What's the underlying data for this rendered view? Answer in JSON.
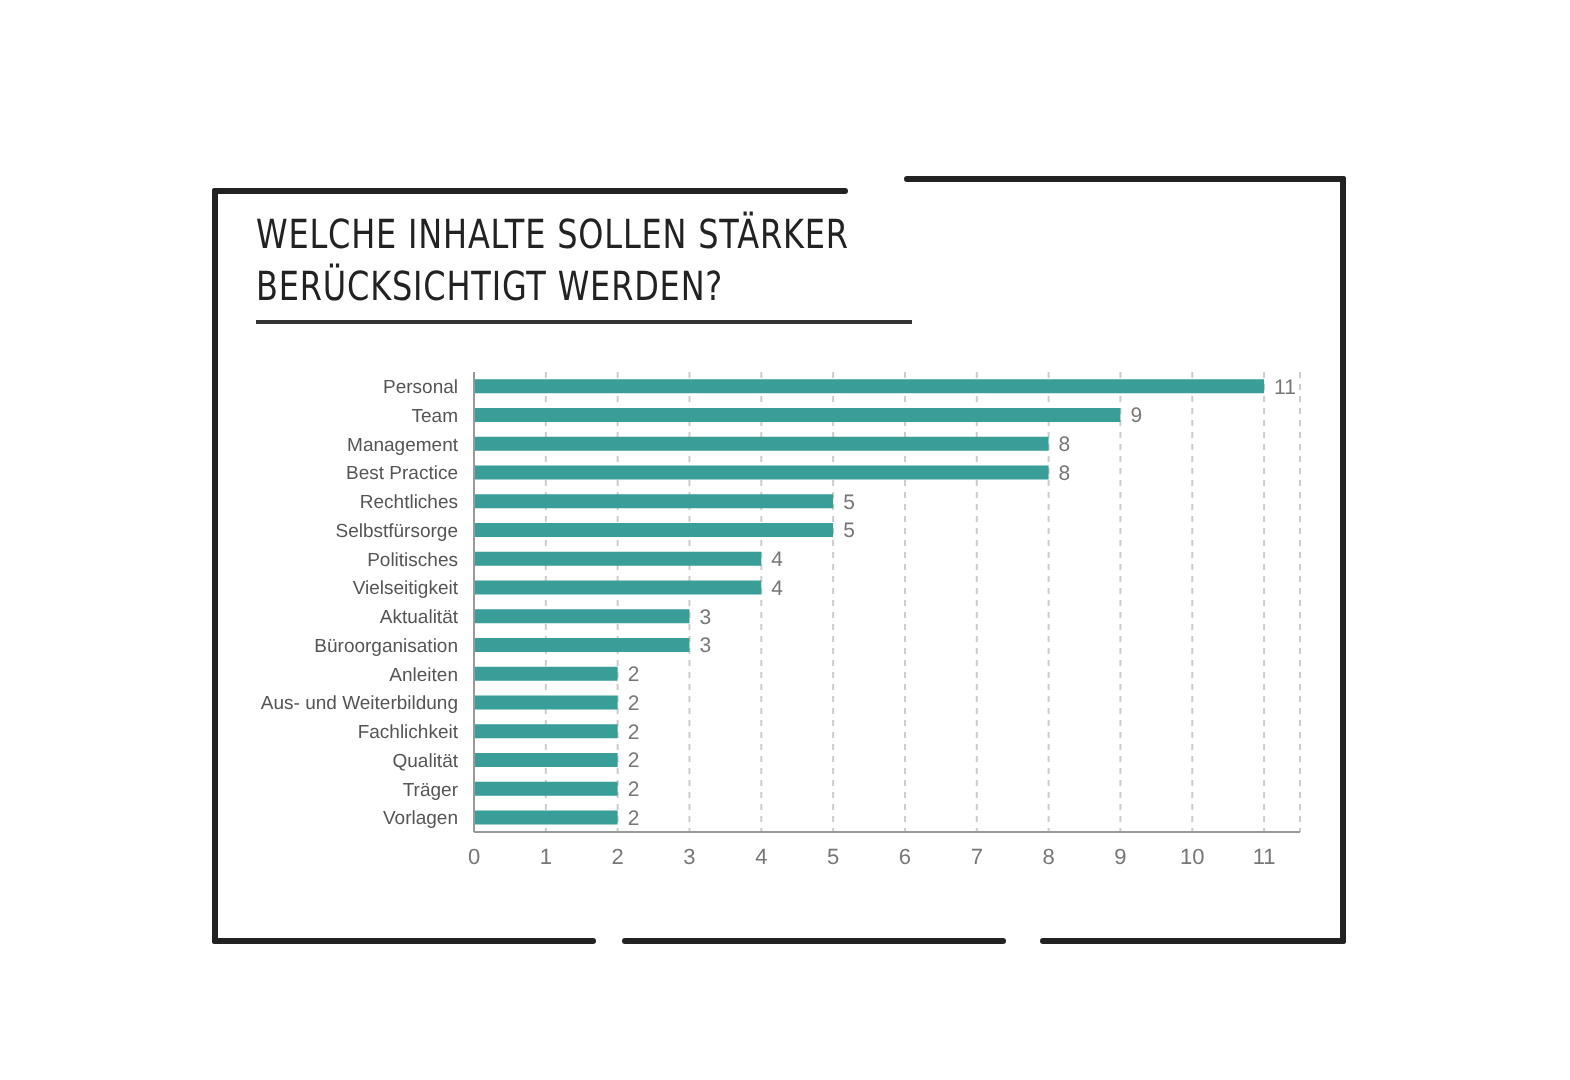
{
  "chart_data": {
    "type": "bar",
    "orientation": "horizontal",
    "title": "WELCHE INHALTE SOLLEN STÄRKER BERÜCKSICHTIGT WERDEN?",
    "categories": [
      "Personal",
      "Team",
      "Management",
      "Best Practice",
      "Rechtliches",
      "Selbstfürsorge",
      "Politisches",
      "Vielseitigkeit",
      "Aktualität",
      "Büroorganisation",
      "Anleiten",
      "Aus- und Weiterbildung",
      "Fachlichkeit",
      "Qualität",
      "Träger",
      "Vorlagen"
    ],
    "values": [
      11,
      9,
      8,
      8,
      5,
      5,
      4,
      4,
      3,
      3,
      2,
      2,
      2,
      2,
      2,
      2
    ],
    "color": "#3a9e98",
    "xlim": [
      0,
      11.5
    ],
    "xticks": [
      0,
      1,
      2,
      3,
      4,
      5,
      6,
      7,
      8,
      9,
      10,
      11
    ],
    "grid": "x",
    "data_labels": true
  }
}
